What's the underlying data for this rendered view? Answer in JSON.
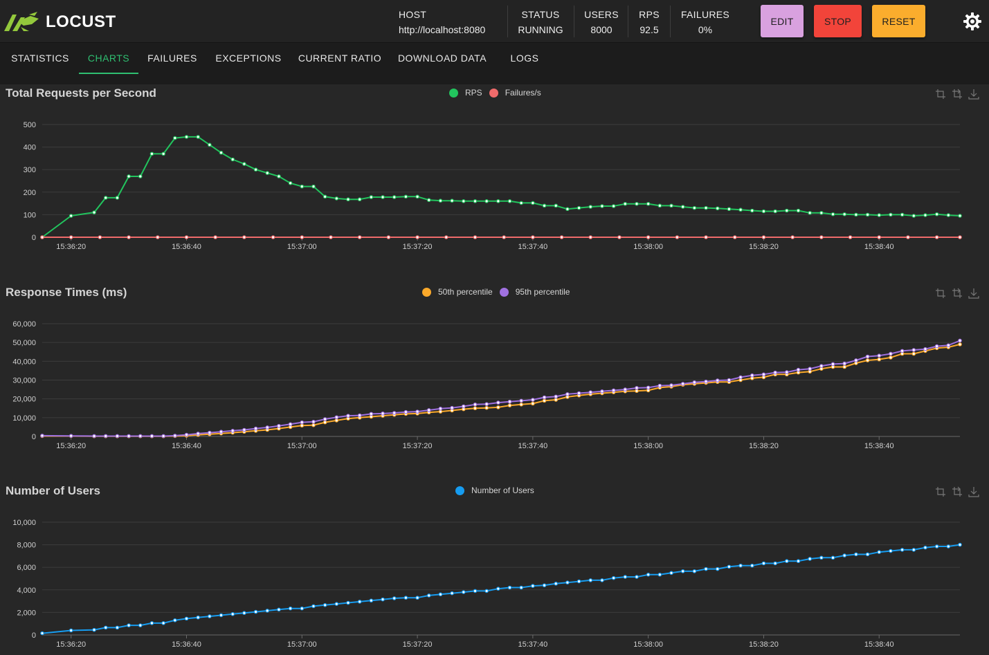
{
  "brand": {
    "name": "LOCUST"
  },
  "stats": [
    {
      "label": "HOST",
      "value": "http://localhost:8080"
    },
    {
      "label": "STATUS",
      "value": "RUNNING"
    },
    {
      "label": "USERS",
      "value": "8000"
    },
    {
      "label": "RPS",
      "value": "92.5"
    },
    {
      "label": "FAILURES",
      "value": "0%"
    }
  ],
  "buttons": {
    "edit": {
      "label": "EDIT",
      "color": "#d9a1df"
    },
    "stop": {
      "label": "STOP",
      "color": "#f2443a"
    },
    "reset": {
      "label": "RESET",
      "color": "#fbad2d"
    }
  },
  "settings_icon": "gear-icon",
  "tabs": [
    {
      "label": "STATISTICS",
      "active": false
    },
    {
      "label": "CHARTS",
      "active": true
    },
    {
      "label": "FAILURES",
      "active": false
    },
    {
      "label": "EXCEPTIONS",
      "active": false
    },
    {
      "label": "CURRENT RATIO",
      "active": false
    },
    {
      "label": "DOWNLOAD DATA",
      "active": false
    },
    {
      "label": "LOGS",
      "active": false
    }
  ],
  "chart_tools": [
    "zoom-icon",
    "zoom-reset-icon",
    "download-icon"
  ],
  "colors": {
    "accent": "#2fbf71",
    "rps": "#22c55e",
    "failures": "#f06b6b",
    "p50": "#fba92a",
    "p95": "#a071e0",
    "users": "#169cf0"
  },
  "chart_data": [
    {
      "type": "line",
      "title": "Total Requests per Second",
      "x_tick_labels": [
        "15:36:20",
        "15:36:40",
        "15:37:00",
        "15:37:20",
        "15:37:40",
        "15:38:00",
        "15:38:20",
        "15:38:40"
      ],
      "x_ticks_sec": [
        20,
        40,
        60,
        80,
        100,
        120,
        140,
        160
      ],
      "ylim": [
        0,
        500
      ],
      "y_ticks": [
        0,
        100,
        200,
        300,
        400,
        500
      ],
      "y_tick_labels": [
        "0",
        "100",
        "200",
        "300",
        "400",
        "500"
      ],
      "x_sec_range": [
        15,
        174
      ],
      "legend": "top-center",
      "series": [
        {
          "name": "RPS",
          "color": "#22c55e",
          "x_sec": [
            15,
            20,
            24,
            26,
            28,
            30,
            32,
            34,
            36,
            38,
            40,
            42,
            44,
            46,
            48,
            50,
            52,
            54,
            56,
            58,
            60,
            62,
            64,
            66,
            68,
            70,
            72,
            74,
            76,
            78,
            80,
            82,
            84,
            86,
            88,
            90,
            92,
            94,
            96,
            98,
            100,
            102,
            104,
            106,
            108,
            110,
            112,
            114,
            116,
            118,
            120,
            122,
            124,
            126,
            128,
            130,
            132,
            134,
            136,
            138,
            140,
            142,
            144,
            146,
            148,
            150,
            152,
            154,
            156,
            158,
            160,
            162,
            164,
            166,
            168,
            170,
            172,
            174
          ],
          "values": [
            0,
            95,
            110,
            175,
            175,
            270,
            270,
            370,
            370,
            440,
            445,
            445,
            410,
            375,
            345,
            325,
            300,
            285,
            270,
            240,
            225,
            225,
            180,
            172,
            168,
            168,
            178,
            178,
            178,
            180,
            180,
            165,
            162,
            162,
            160,
            160,
            160,
            160,
            160,
            152,
            152,
            140,
            140,
            125,
            130,
            135,
            138,
            138,
            148,
            148,
            148,
            140,
            140,
            135,
            130,
            130,
            128,
            125,
            122,
            118,
            115,
            115,
            118,
            118,
            108,
            108,
            102,
            102,
            100,
            100,
            98,
            100,
            100,
            95,
            98,
            102,
            98,
            95
          ]
        },
        {
          "name": "Failures/s",
          "color": "#f06b6b",
          "x_sec": [
            15,
            20,
            25,
            30,
            35,
            40,
            45,
            50,
            55,
            60,
            65,
            70,
            75,
            80,
            85,
            90,
            95,
            100,
            105,
            110,
            115,
            120,
            125,
            130,
            135,
            140,
            145,
            150,
            155,
            160,
            165,
            170,
            174
          ],
          "values": [
            0,
            0,
            0,
            0,
            0,
            0,
            0,
            0,
            0,
            0,
            0,
            0,
            0,
            0,
            0,
            0,
            0,
            0,
            0,
            0,
            0,
            0,
            0,
            0,
            0,
            0,
            0,
            0,
            0,
            0,
            0,
            0,
            0
          ]
        }
      ]
    },
    {
      "type": "line",
      "title": "Response Times (ms)",
      "x_tick_labels": [
        "15:36:20",
        "15:36:40",
        "15:37:00",
        "15:37:20",
        "15:37:40",
        "15:38:00",
        "15:38:20",
        "15:38:40"
      ],
      "x_ticks_sec": [
        20,
        40,
        60,
        80,
        100,
        120,
        140,
        160
      ],
      "ylim": [
        0,
        60000
      ],
      "y_ticks": [
        0,
        10000,
        20000,
        30000,
        40000,
        50000,
        60000
      ],
      "y_tick_labels": [
        "0",
        "10,000",
        "20,000",
        "30,000",
        "40,000",
        "50,000",
        "60,000"
      ],
      "x_sec_range": [
        15,
        174
      ],
      "legend": "top-center",
      "series": [
        {
          "name": "50th percentile",
          "color": "#fba92a",
          "x_sec": [
            15,
            20,
            24,
            26,
            28,
            30,
            32,
            34,
            36,
            38,
            40,
            42,
            44,
            46,
            48,
            50,
            52,
            54,
            56,
            58,
            60,
            62,
            64,
            66,
            68,
            70,
            72,
            74,
            76,
            78,
            80,
            82,
            84,
            86,
            88,
            90,
            92,
            94,
            96,
            98,
            100,
            102,
            104,
            106,
            108,
            110,
            112,
            114,
            116,
            118,
            120,
            122,
            124,
            126,
            128,
            130,
            132,
            134,
            136,
            138,
            140,
            142,
            144,
            146,
            148,
            150,
            152,
            154,
            156,
            158,
            160,
            162,
            164,
            166,
            168,
            170,
            172,
            174
          ],
          "values": [
            200,
            200,
            100,
            100,
            100,
            100,
            100,
            100,
            100,
            200,
            400,
            800,
            1200,
            1600,
            2000,
            2500,
            3000,
            3500,
            4200,
            5000,
            5800,
            6000,
            7500,
            8500,
            9500,
            10000,
            10500,
            11000,
            11500,
            12000,
            12200,
            12800,
            13200,
            13800,
            14500,
            15000,
            15200,
            15500,
            16500,
            17000,
            17500,
            19000,
            19500,
            21000,
            21800,
            22500,
            23000,
            23500,
            24000,
            24200,
            24500,
            26000,
            26500,
            27500,
            28000,
            28500,
            29000,
            29000,
            30000,
            31000,
            31500,
            33000,
            33000,
            34000,
            34500,
            36000,
            37000,
            37000,
            39000,
            40500,
            41000,
            42000,
            44000,
            44000,
            45500,
            47000,
            47500,
            49000
          ]
        },
        {
          "name": "95th percentile",
          "color": "#a071e0",
          "x_sec": [
            15,
            20,
            24,
            26,
            28,
            30,
            32,
            34,
            36,
            38,
            40,
            42,
            44,
            46,
            48,
            50,
            52,
            54,
            56,
            58,
            60,
            62,
            64,
            66,
            68,
            70,
            72,
            74,
            76,
            78,
            80,
            82,
            84,
            86,
            88,
            90,
            92,
            94,
            96,
            98,
            100,
            102,
            104,
            106,
            108,
            110,
            112,
            114,
            116,
            118,
            120,
            122,
            124,
            126,
            128,
            130,
            132,
            134,
            136,
            138,
            140,
            142,
            144,
            146,
            148,
            150,
            152,
            154,
            156,
            158,
            160,
            162,
            164,
            166,
            168,
            170,
            172,
            174
          ],
          "values": [
            400,
            300,
            200,
            200,
            200,
            200,
            200,
            200,
            200,
            400,
            900,
            1500,
            2000,
            2500,
            3000,
            3500,
            4200,
            4800,
            5600,
            6500,
            7500,
            7800,
            9200,
            10200,
            11000,
            11200,
            12000,
            12200,
            12500,
            13000,
            13200,
            14000,
            14800,
            15200,
            16000,
            17000,
            17200,
            18000,
            18500,
            19000,
            19500,
            20800,
            21200,
            22500,
            23000,
            23500,
            24000,
            24500,
            25000,
            25800,
            26000,
            27000,
            27200,
            28000,
            28800,
            29200,
            29800,
            30000,
            31500,
            32500,
            33000,
            34000,
            34200,
            35500,
            36000,
            37500,
            38500,
            38800,
            40500,
            42500,
            43000,
            44000,
            45500,
            46000,
            46500,
            48000,
            48500,
            51000
          ]
        }
      ]
    },
    {
      "type": "line",
      "title": "Number of Users",
      "x_tick_labels": [
        "15:36:20",
        "15:36:40",
        "15:37:00",
        "15:37:20",
        "15:37:40",
        "15:38:00",
        "15:38:20",
        "15:38:40"
      ],
      "x_ticks_sec": [
        20,
        40,
        60,
        80,
        100,
        120,
        140,
        160
      ],
      "ylim": [
        0,
        10000
      ],
      "y_ticks": [
        0,
        2000,
        4000,
        6000,
        8000,
        10000
      ],
      "y_tick_labels": [
        "0",
        "2,000",
        "4,000",
        "6,000",
        "8,000",
        "10,000"
      ],
      "x_sec_range": [
        15,
        174
      ],
      "legend": "top-center",
      "series": [
        {
          "name": "Number of Users",
          "color": "#169cf0",
          "x_sec": [
            15,
            20,
            24,
            26,
            28,
            30,
            32,
            34,
            36,
            38,
            40,
            42,
            44,
            46,
            48,
            50,
            52,
            54,
            56,
            58,
            60,
            62,
            64,
            66,
            68,
            70,
            72,
            74,
            76,
            78,
            80,
            82,
            84,
            86,
            88,
            90,
            92,
            94,
            96,
            98,
            100,
            102,
            104,
            106,
            108,
            110,
            112,
            114,
            116,
            118,
            120,
            122,
            124,
            126,
            128,
            130,
            132,
            134,
            136,
            138,
            140,
            142,
            144,
            146,
            148,
            150,
            152,
            154,
            156,
            158,
            160,
            162,
            164,
            166,
            168,
            170,
            172,
            174
          ],
          "values": [
            150,
            400,
            450,
            650,
            650,
            850,
            850,
            1050,
            1050,
            1300,
            1450,
            1550,
            1650,
            1750,
            1850,
            1950,
            2050,
            2150,
            2250,
            2350,
            2350,
            2550,
            2650,
            2750,
            2850,
            2950,
            3050,
            3150,
            3250,
            3300,
            3300,
            3500,
            3600,
            3700,
            3800,
            3900,
            3900,
            4100,
            4200,
            4200,
            4350,
            4400,
            4550,
            4650,
            4750,
            4850,
            4850,
            5050,
            5150,
            5150,
            5350,
            5350,
            5500,
            5650,
            5650,
            5850,
            5850,
            6050,
            6150,
            6150,
            6350,
            6350,
            6550,
            6550,
            6750,
            6850,
            6850,
            7050,
            7150,
            7150,
            7350,
            7450,
            7550,
            7550,
            7750,
            7850,
            7850,
            8000
          ]
        }
      ]
    }
  ]
}
